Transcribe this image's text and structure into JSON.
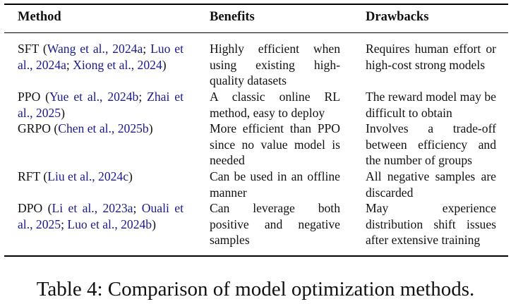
{
  "table": {
    "headers": {
      "method": "Method",
      "benefits": "Benefits",
      "drawbacks": "Drawbacks"
    },
    "rows": [
      {
        "method_name": "SFT (",
        "citations": [
          {
            "text": "Wang et al., 2024a",
            "sep": "; "
          },
          {
            "text": "Luo et al., 2024a",
            "sep": "; "
          },
          {
            "text": "Xiong et al., 2024",
            "sep": ")"
          }
        ],
        "benefits": "Highly efficient when using existing high-quality datasets",
        "drawbacks": "Requires human effort or high-cost strong models"
      },
      {
        "method_name": "PPO (",
        "citations": [
          {
            "text": "Yue et al., 2024b",
            "sep": "; "
          },
          {
            "text": "Zhai et al., 2025",
            "sep": ")"
          }
        ],
        "benefits": "A classic online RL method, easy to deploy",
        "drawbacks": "The reward model may be difficult to obtain"
      },
      {
        "method_name": "GRPO (",
        "citations": [
          {
            "text": "Chen et al., 2025b",
            "sep": ")"
          }
        ],
        "benefits": "More efficient than PPO since no value model is needed",
        "drawbacks": "Involves a trade-off between efficiency and the number of groups"
      },
      {
        "method_name": "RFT (",
        "citations": [
          {
            "text": "Liu et al., 2024c",
            "sep": ")"
          }
        ],
        "benefits": "Can be used in an offline manner",
        "drawbacks": "All negative samples are discarded"
      },
      {
        "method_name": "DPO (",
        "citations": [
          {
            "text": "Li et al., 2023a",
            "sep": "; "
          },
          {
            "text": "Ouali et al., 2025",
            "sep": "; "
          },
          {
            "text": "Luo et al., 2024b",
            "sep": ")"
          }
        ],
        "benefits": "Can leverage both positive and negative samples",
        "drawbacks": "May experience distribution shift issues after extensive training"
      }
    ]
  },
  "caption": "Table 4: Comparison of model optimization methods.",
  "colors": {
    "citation": "#1a1a8c",
    "text": "#111111"
  }
}
